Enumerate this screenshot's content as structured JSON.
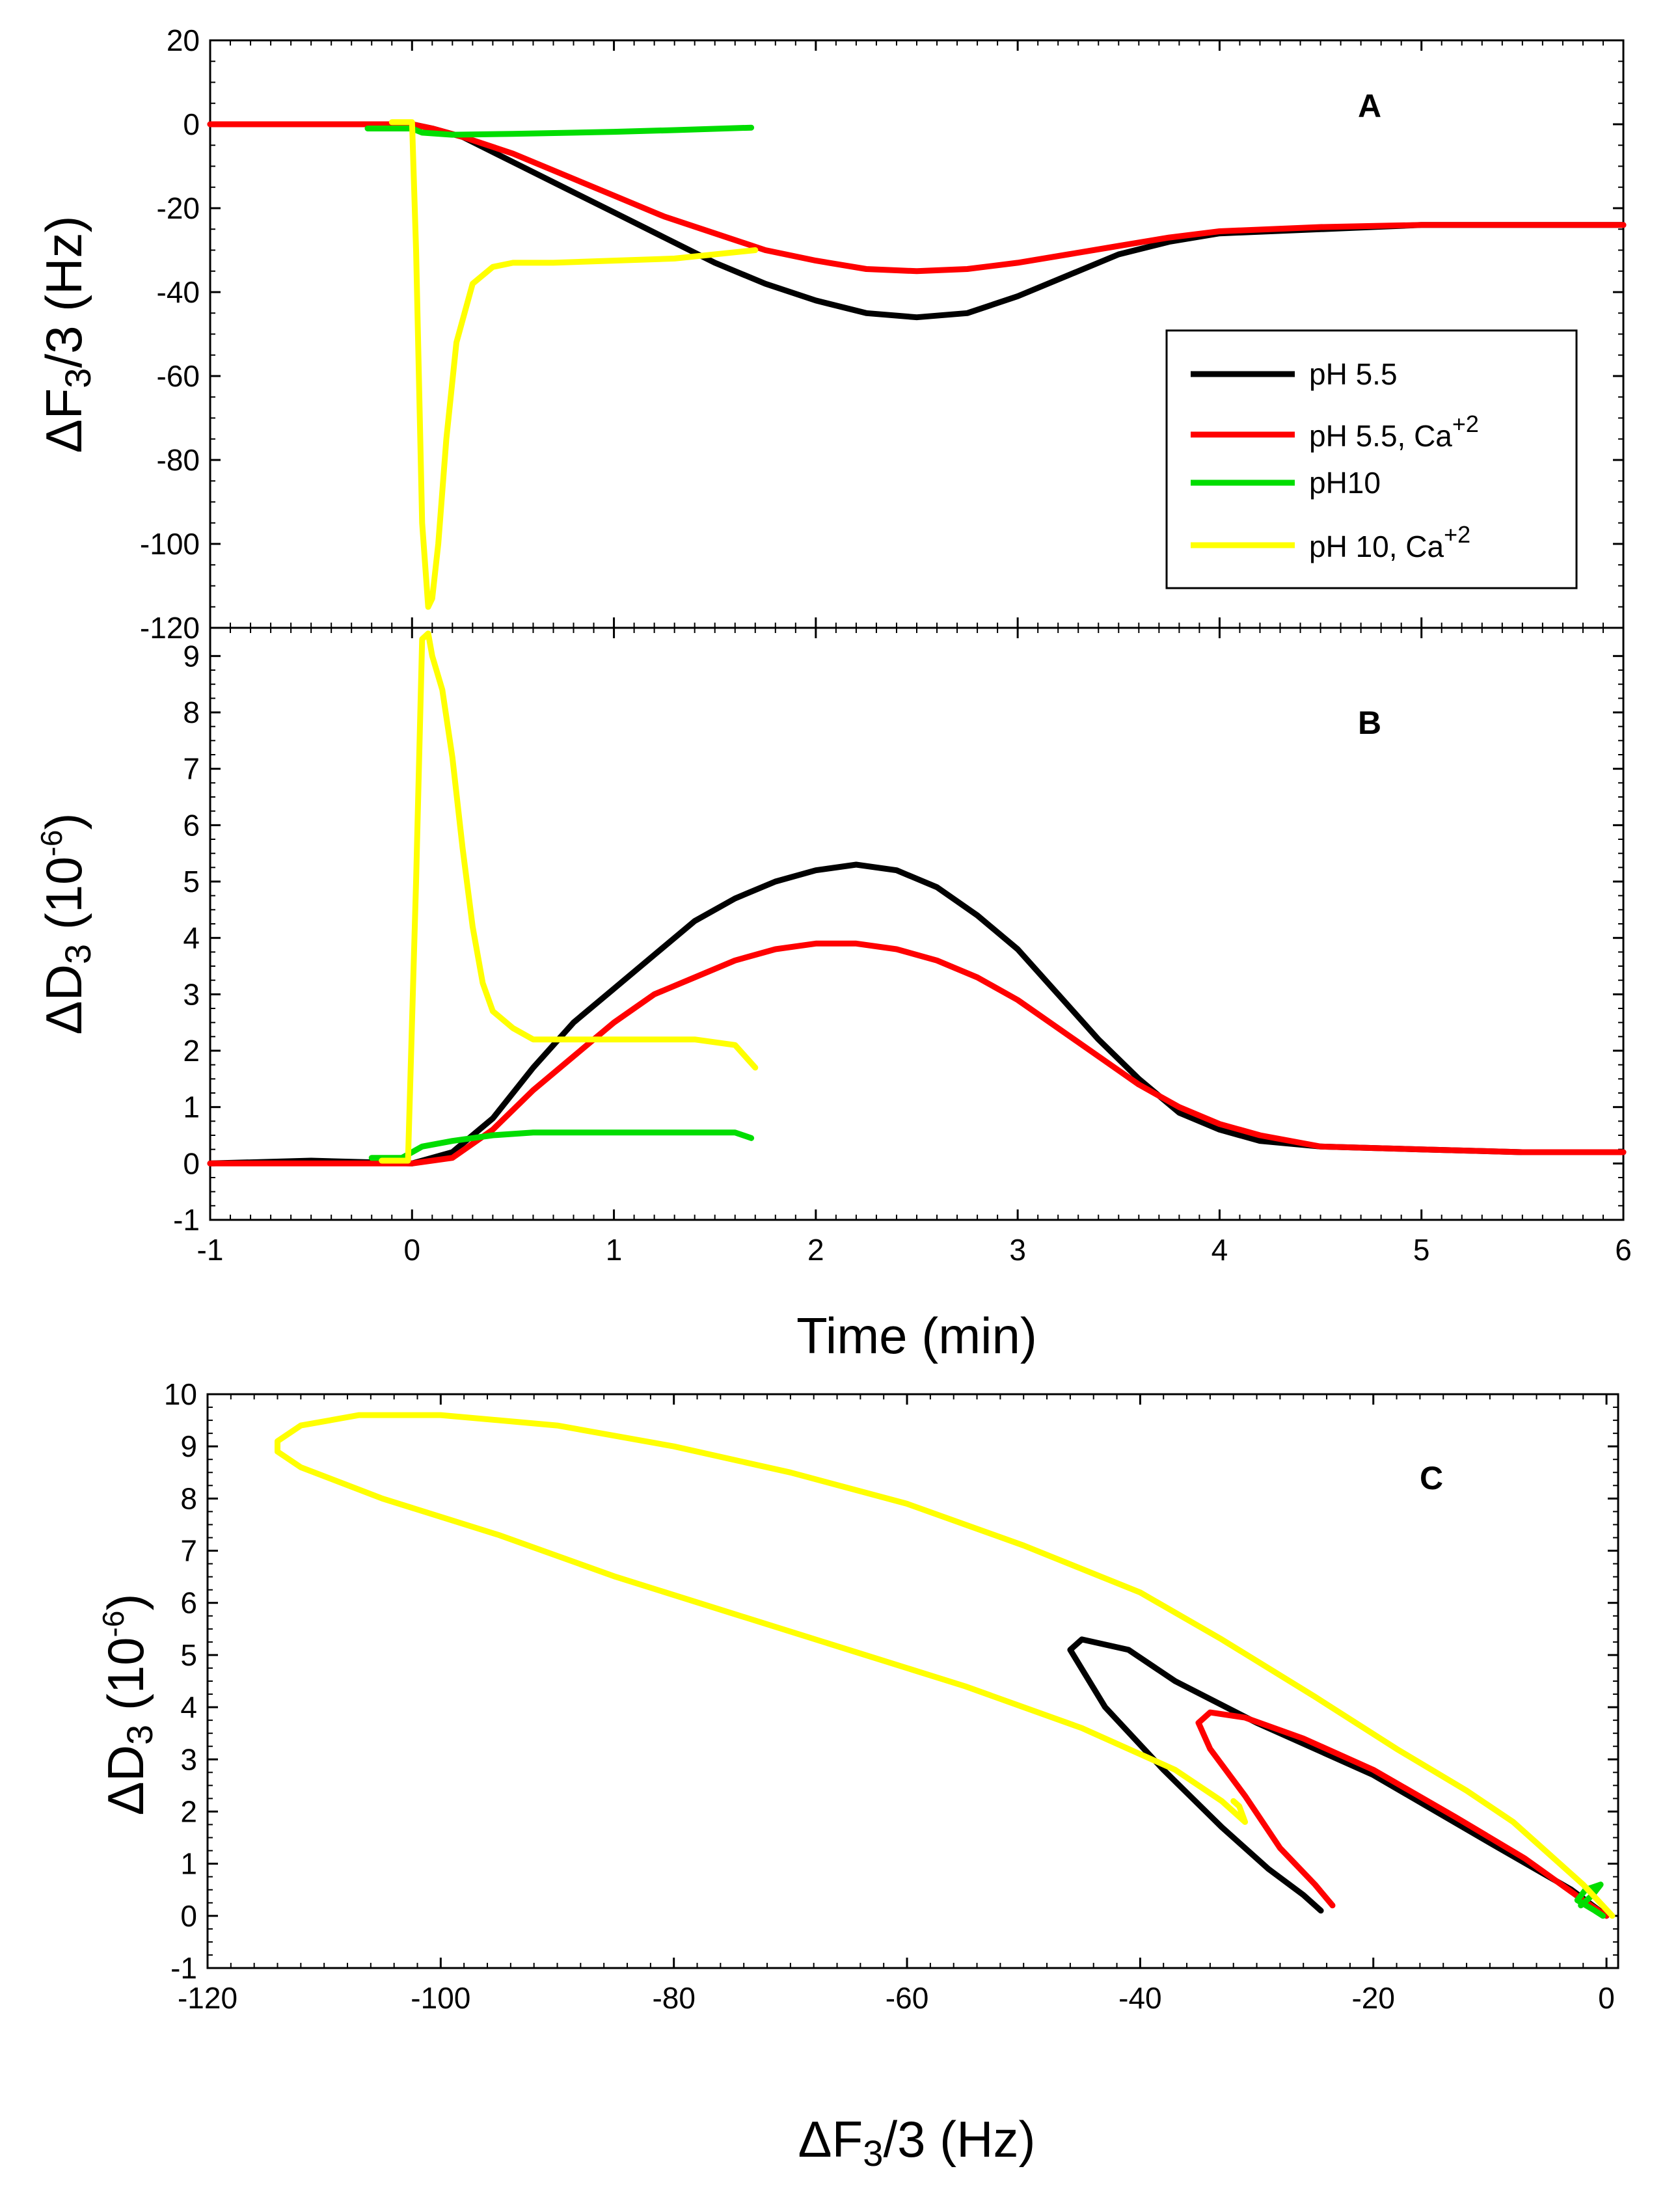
{
  "chart_data": [
    {
      "panel": "A",
      "type": "line",
      "xlabel": "",
      "ylabel": "ΔF3/3 (Hz)",
      "xlim": [
        -1,
        6
      ],
      "ylim": [
        -120,
        20
      ],
      "x_ticks": [
        -1,
        0,
        1,
        2,
        3,
        4,
        5,
        6
      ],
      "y_ticks": [
        20,
        0,
        -20,
        -40,
        -60,
        -80,
        -100,
        -120
      ],
      "y_tick_labels": [
        "20",
        "0",
        "-20",
        "-40",
        "-60",
        "-80",
        "-100",
        "-120"
      ],
      "legend": {
        "position": "right",
        "entries": [
          {
            "label": "pH 5.5",
            "color": "#000000"
          },
          {
            "label": "pH 5.5, Ca+2",
            "color": "#ff0000"
          },
          {
            "label": "pH10",
            "color": "#00dd00"
          },
          {
            "label": "pH 10, Ca+2",
            "color": "#ffff00"
          }
        ]
      },
      "series": [
        {
          "name": "pH 5.5",
          "color": "#000000",
          "x": [
            -1,
            -0.5,
            0,
            0.1,
            0.25,
            0.5,
            0.75,
            1,
            1.25,
            1.5,
            1.75,
            2,
            2.25,
            2.5,
            2.75,
            3,
            3.25,
            3.5,
            3.75,
            4,
            4.5,
            5,
            5.5,
            6
          ],
          "y": [
            0,
            0,
            0,
            -1,
            -3,
            -9,
            -15,
            -21,
            -27,
            -33,
            -38,
            -42,
            -45,
            -46,
            -45,
            -41,
            -36,
            -31,
            -28,
            -26,
            -25,
            -24,
            -24,
            -24
          ]
        },
        {
          "name": "pH 5.5, Ca+2",
          "color": "#ff0000",
          "x": [
            -1,
            -0.5,
            0,
            0.1,
            0.25,
            0.5,
            0.75,
            1,
            1.25,
            1.5,
            1.75,
            2,
            2.25,
            2.5,
            2.75,
            3,
            3.25,
            3.5,
            3.75,
            4,
            4.5,
            5,
            5.5,
            6
          ],
          "y": [
            0,
            0,
            0,
            -1,
            -3,
            -7,
            -12,
            -17,
            -22,
            -26,
            -30,
            -32.5,
            -34.5,
            -35,
            -34.5,
            -33,
            -31,
            -29,
            -27,
            -25.5,
            -24.5,
            -24,
            -24,
            -24
          ]
        },
        {
          "name": "pH10",
          "color": "#00dd00",
          "x": [
            -0.22,
            -0.1,
            0,
            0.05,
            0.2,
            0.5,
            1,
            1.3,
            1.68
          ],
          "y": [
            -1,
            -1,
            -1,
            -2,
            -2.5,
            -2.3,
            -1.8,
            -1.4,
            -0.8
          ]
        },
        {
          "name": "pH 10, Ca+2",
          "color": "#ffff00",
          "x": [
            -0.1,
            0,
            0.02,
            0.05,
            0.08,
            0.1,
            0.13,
            0.17,
            0.22,
            0.3,
            0.4,
            0.5,
            0.7,
            1,
            1.3,
            1.7
          ],
          "y": [
            0.5,
            0.5,
            -30,
            -95,
            -115,
            -113,
            -100,
            -75,
            -52,
            -38,
            -34,
            -33,
            -33,
            -32.5,
            -32,
            -30
          ]
        }
      ]
    },
    {
      "panel": "B",
      "type": "line",
      "xlabel": "Time (min)",
      "ylabel": "ΔD3 (10-6)",
      "xlim": [
        -1,
        6
      ],
      "ylim": [
        -1,
        9.5
      ],
      "x_ticks": [
        -1,
        0,
        1,
        2,
        3,
        4,
        5,
        6
      ],
      "x_tick_labels": [
        "-1",
        "0",
        "1",
        "2",
        "3",
        "4",
        "5",
        "6"
      ],
      "y_ticks": [
        -1,
        0,
        1,
        2,
        3,
        4,
        5,
        6,
        7,
        8,
        9
      ],
      "y_tick_labels": [
        "-1",
        "0",
        "1",
        "2",
        "3",
        "4",
        "5",
        "6",
        "7",
        "8",
        "9"
      ],
      "series": [
        {
          "name": "pH 5.5",
          "color": "#000000",
          "x": [
            -1,
            -0.5,
            0,
            0.2,
            0.4,
            0.6,
            0.8,
            1,
            1.2,
            1.4,
            1.6,
            1.8,
            2,
            2.2,
            2.4,
            2.6,
            2.8,
            3,
            3.2,
            3.4,
            3.6,
            3.8,
            4,
            4.2,
            4.5,
            5,
            5.5,
            6
          ],
          "y": [
            0,
            0.05,
            0,
            0.2,
            0.8,
            1.7,
            2.5,
            3.1,
            3.7,
            4.3,
            4.7,
            5.0,
            5.2,
            5.3,
            5.2,
            4.9,
            4.4,
            3.8,
            3.0,
            2.2,
            1.5,
            0.9,
            0.6,
            0.4,
            0.3,
            0.25,
            0.2,
            0.2
          ]
        },
        {
          "name": "pH 5.5, Ca+2",
          "color": "#ff0000",
          "x": [
            -1,
            -0.5,
            0,
            0.2,
            0.4,
            0.6,
            0.8,
            1,
            1.2,
            1.4,
            1.6,
            1.8,
            2,
            2.2,
            2.4,
            2.6,
            2.8,
            3,
            3.2,
            3.4,
            3.6,
            3.8,
            4,
            4.2,
            4.5,
            5,
            5.5,
            6
          ],
          "y": [
            0,
            0,
            0,
            0.1,
            0.6,
            1.3,
            1.9,
            2.5,
            3.0,
            3.3,
            3.6,
            3.8,
            3.9,
            3.9,
            3.8,
            3.6,
            3.3,
            2.9,
            2.4,
            1.9,
            1.4,
            1.0,
            0.7,
            0.5,
            0.3,
            0.25,
            0.2,
            0.2
          ]
        },
        {
          "name": "pH10",
          "color": "#00dd00",
          "x": [
            -0.2,
            -0.05,
            0.05,
            0.2,
            0.4,
            0.6,
            0.8,
            1,
            1.2,
            1.4,
            1.6,
            1.68
          ],
          "y": [
            0.1,
            0.1,
            0.3,
            0.4,
            0.5,
            0.55,
            0.55,
            0.55,
            0.55,
            0.55,
            0.55,
            0.45
          ]
        },
        {
          "name": "pH 10, Ca+2",
          "color": "#ffff00",
          "x": [
            -0.15,
            -0.02,
            0.02,
            0.05,
            0.08,
            0.1,
            0.15,
            0.2,
            0.25,
            0.3,
            0.35,
            0.4,
            0.5,
            0.6,
            0.8,
            1,
            1.2,
            1.4,
            1.6,
            1.7
          ],
          "y": [
            0.05,
            0.05,
            5,
            9.3,
            9.4,
            9.0,
            8.4,
            7.2,
            5.6,
            4.2,
            3.2,
            2.7,
            2.4,
            2.2,
            2.2,
            2.2,
            2.2,
            2.2,
            2.1,
            1.7
          ]
        }
      ]
    },
    {
      "panel": "C",
      "type": "line",
      "xlabel": "ΔF3/3 (Hz)",
      "ylabel": "ΔD3 (10-6)",
      "xlim": [
        -120,
        1
      ],
      "ylim": [
        -1,
        10
      ],
      "x_ticks": [
        -120,
        -100,
        -80,
        -60,
        -40,
        -20,
        0
      ],
      "x_tick_labels": [
        "-120",
        "-100",
        "-80",
        "-60",
        "-40",
        "-20",
        "0"
      ],
      "y_ticks": [
        -1,
        0,
        1,
        2,
        3,
        4,
        5,
        6,
        7,
        8,
        9,
        10
      ],
      "y_tick_labels": [
        "-1",
        "0",
        "1",
        "2",
        "3",
        "4",
        "5",
        "6",
        "7",
        "8",
        "9",
        "10"
      ],
      "series": [
        {
          "name": "pH 5.5",
          "color": "#000000",
          "x": [
            -24.5,
            -26,
            -29,
            -33,
            -38,
            -43,
            -46,
            -45,
            -41,
            -37,
            -30,
            -20,
            -10,
            -3,
            0
          ],
          "y": [
            0.1,
            0.4,
            0.9,
            1.7,
            2.8,
            4.0,
            5.1,
            5.3,
            5.1,
            4.5,
            3.7,
            2.7,
            1.4,
            0.5,
            0.0
          ]
        },
        {
          "name": "pH 5.5, Ca+2",
          "color": "#ff0000",
          "x": [
            -23.5,
            -25,
            -28,
            -31,
            -34,
            -35,
            -34,
            -31,
            -26,
            -20,
            -13,
            -7,
            -2,
            0
          ],
          "y": [
            0.2,
            0.6,
            1.3,
            2.3,
            3.2,
            3.7,
            3.9,
            3.8,
            3.4,
            2.8,
            1.9,
            1.1,
            0.3,
            0.0
          ]
        },
        {
          "name": "pH10",
          "color": "#00dd00",
          "x": [
            -2.2,
            -1.2,
            -0.5,
            -1.8,
            -2.5,
            -1.0,
            -0.3
          ],
          "y": [
            0.2,
            0.4,
            0.6,
            0.5,
            0.3,
            0.1,
            0.0
          ]
        },
        {
          "name": "pH 10, Ca+2",
          "color": "#ffff00",
          "x": [
            0.5,
            -2,
            -5,
            -8,
            -12,
            -18,
            -25,
            -33,
            -40,
            -50,
            -60,
            -70,
            -80,
            -90,
            -100,
            -107,
            -112,
            -114,
            -114,
            -112,
            -105,
            -95,
            -85,
            -75,
            -65,
            -55,
            -45,
            -37,
            -33,
            -31,
            -31.5,
            -32
          ],
          "y": [
            0.0,
            0.6,
            1.2,
            1.8,
            2.4,
            3.2,
            4.2,
            5.3,
            6.2,
            7.1,
            7.9,
            8.5,
            9.0,
            9.4,
            9.6,
            9.6,
            9.4,
            9.1,
            8.9,
            8.6,
            8.0,
            7.3,
            6.5,
            5.8,
            5.1,
            4.4,
            3.6,
            2.8,
            2.2,
            1.8,
            2.1,
            2.2
          ]
        }
      ]
    }
  ]
}
